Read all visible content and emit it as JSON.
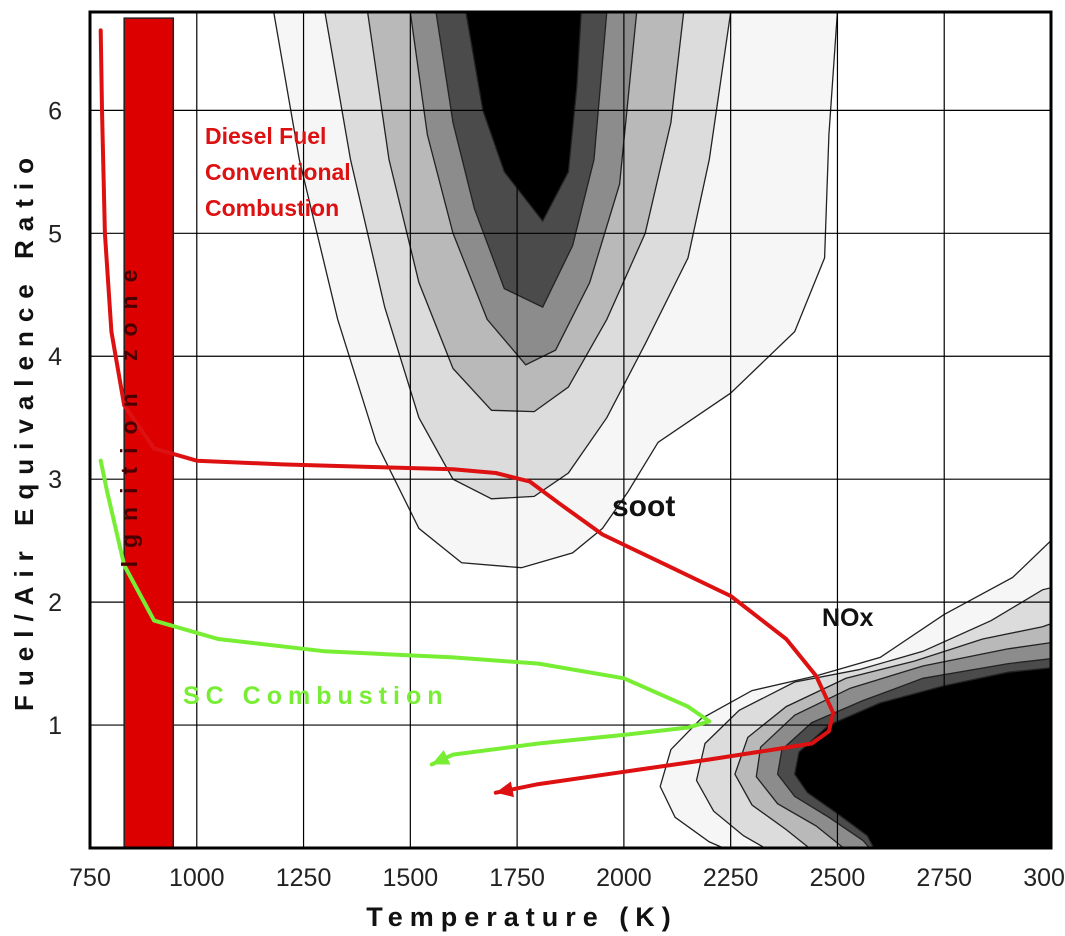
{
  "chart_data": {
    "type": "line",
    "title": "",
    "xlabel": "Temperature (K)",
    "ylabel": "Fuel/Air Equivalence Ratio",
    "xlim": [
      750,
      3000
    ],
    "ylim": [
      0,
      6.8
    ],
    "grid": true,
    "x_ticks": [
      "750",
      "1000",
      "1250",
      "1500",
      "1750",
      "2000",
      "2250",
      "2500",
      "2750",
      "3000"
    ],
    "y_ticks": [
      "1",
      "2",
      "3",
      "4",
      "5",
      "6"
    ],
    "colors": {
      "diesel": "#dd1111",
      "sc": "#77ee33",
      "ignition": "#dd0000",
      "contour_levels": [
        "#f6f6f6",
        "#dcdcdc",
        "#b9b9b9",
        "#8c8c8c",
        "#4b4b4b",
        "#000000"
      ]
    },
    "series": [
      {
        "name": "Diesel Fuel Conventional Combustion",
        "x": [
          775,
          778,
          785,
          800,
          830,
          900,
          1000,
          1200,
          1400,
          1600,
          1700,
          1780,
          1850,
          1950,
          2100,
          2250,
          2380,
          2450,
          2490,
          2480,
          2440,
          2350,
          2200,
          2000,
          1800,
          1700
        ],
        "y": [
          6.65,
          6.0,
          5.0,
          4.2,
          3.6,
          3.25,
          3.15,
          3.12,
          3.1,
          3.08,
          3.05,
          2.98,
          2.8,
          2.55,
          2.3,
          2.05,
          1.7,
          1.4,
          1.1,
          0.95,
          0.85,
          0.8,
          0.72,
          0.62,
          0.52,
          0.45
        ]
      },
      {
        "name": "SC Combustion",
        "x": [
          775,
          790,
          830,
          900,
          1050,
          1300,
          1600,
          1800,
          2000,
          2150,
          2200,
          2150,
          2000,
          1800,
          1600,
          1550
        ],
        "y": [
          3.15,
          2.9,
          2.3,
          1.85,
          1.7,
          1.6,
          1.55,
          1.5,
          1.38,
          1.15,
          1.03,
          0.98,
          0.92,
          0.85,
          0.76,
          0.68
        ]
      }
    ],
    "regions": [
      {
        "name": "Ignition zone",
        "x": [
          830,
          945
        ],
        "y": [
          0,
          6.75
        ]
      },
      {
        "name": "soot",
        "shape": "V-shaped contour lobe",
        "x_range": [
          1180,
          2530
        ],
        "y_range": [
          2.28,
          6.8
        ]
      },
      {
        "name": "NOx",
        "shape": "contour blob",
        "x_range": [
          2080,
          3000
        ],
        "y_range": [
          0,
          2.5
        ]
      }
    ],
    "annotations": {
      "diesel_label": [
        "Diesel Fuel",
        "Conventional",
        "Combustion"
      ],
      "ignition_label": "Ignition zone",
      "soot_label": "soot",
      "nox_label": "NOx",
      "sc_label": "SC Combustion"
    }
  }
}
